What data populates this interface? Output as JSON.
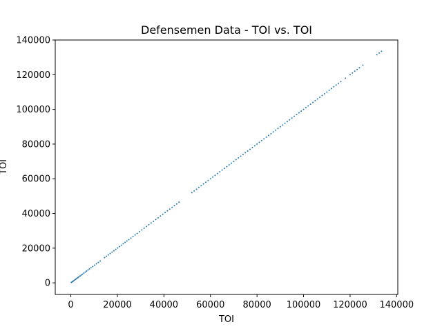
{
  "chart_data": {
    "type": "scatter",
    "title": "Defensemen Data - TOI vs. TOI",
    "xlabel": "TOI",
    "ylabel": "TOI",
    "xlim": [
      -6700,
      140500
    ],
    "ylim": [
      -6700,
      140000
    ],
    "xticks": [
      0,
      20000,
      40000,
      60000,
      80000,
      100000,
      120000,
      140000
    ],
    "yticks": [
      0,
      20000,
      40000,
      60000,
      80000,
      100000,
      120000,
      140000
    ],
    "grid": false,
    "marker_color": "#1f77b4",
    "series": [
      {
        "x": [
          200,
          500,
          800,
          1100,
          1500,
          1900,
          2300,
          2700,
          3100,
          3500,
          4000,
          4500,
          5000,
          5600,
          6200,
          6800,
          7400,
          8000,
          8700,
          9400,
          10200,
          11000,
          11800,
          12600,
          14500,
          15300,
          16100,
          16900,
          17700,
          18500,
          19300,
          20100,
          20900,
          21700,
          22500,
          23300,
          24100,
          24900,
          25800,
          26700,
          27600,
          28500,
          29500,
          30500,
          31500,
          32500,
          33500,
          34500,
          35500,
          36500,
          37500,
          38500,
          39500,
          40500,
          41500,
          42500,
          43500,
          44500,
          45500,
          46500,
          52000,
          53000,
          54000,
          55000,
          56000,
          57000,
          58000,
          59000,
          60000,
          61000,
          62000,
          63000,
          64000,
          65000,
          66000,
          67000,
          68000,
          69000,
          70000,
          71000,
          72000,
          73000,
          74000,
          75000,
          76000,
          77000,
          78000,
          79000,
          80000,
          81000,
          82000,
          83000,
          84000,
          85000,
          86000,
          87000,
          88000,
          89000,
          90000,
          91000,
          92000,
          93000,
          94000,
          95000,
          96000,
          97000,
          98000,
          99000,
          100000,
          101000,
          102000,
          103000,
          104000,
          105000,
          106000,
          107000,
          108000,
          109000,
          110000,
          111000,
          112000,
          113000,
          114000,
          115000,
          116000,
          118000,
          120000,
          121000,
          122000,
          123000,
          124000,
          125500,
          131500,
          132500,
          133500
        ],
        "y": [
          200,
          500,
          800,
          1100,
          1500,
          1900,
          2300,
          2700,
          3100,
          3500,
          4000,
          4500,
          5000,
          5600,
          6200,
          6800,
          7400,
          8000,
          8700,
          9400,
          10200,
          11000,
          11800,
          12600,
          14500,
          15300,
          16100,
          16900,
          17700,
          18500,
          19300,
          20100,
          20900,
          21700,
          22500,
          23300,
          24100,
          24900,
          25800,
          26700,
          27600,
          28500,
          29500,
          30500,
          31500,
          32500,
          33500,
          34500,
          35500,
          36500,
          37500,
          38500,
          39500,
          40500,
          41500,
          42500,
          43500,
          44500,
          45500,
          46500,
          52000,
          53000,
          54000,
          55000,
          56000,
          57000,
          58000,
          59000,
          60000,
          61000,
          62000,
          63000,
          64000,
          65000,
          66000,
          67000,
          68000,
          69000,
          70000,
          71000,
          72000,
          73000,
          74000,
          75000,
          76000,
          77000,
          78000,
          79000,
          80000,
          81000,
          82000,
          83000,
          84000,
          85000,
          86000,
          87000,
          88000,
          89000,
          90000,
          91000,
          92000,
          93000,
          94000,
          95000,
          96000,
          97000,
          98000,
          99000,
          100000,
          101000,
          102000,
          103000,
          104000,
          105000,
          106000,
          107000,
          108000,
          109000,
          110000,
          111000,
          112000,
          113000,
          114000,
          115000,
          116000,
          118000,
          120000,
          121000,
          122000,
          123000,
          124000,
          125500,
          131500,
          132500,
          133500
        ]
      }
    ]
  }
}
